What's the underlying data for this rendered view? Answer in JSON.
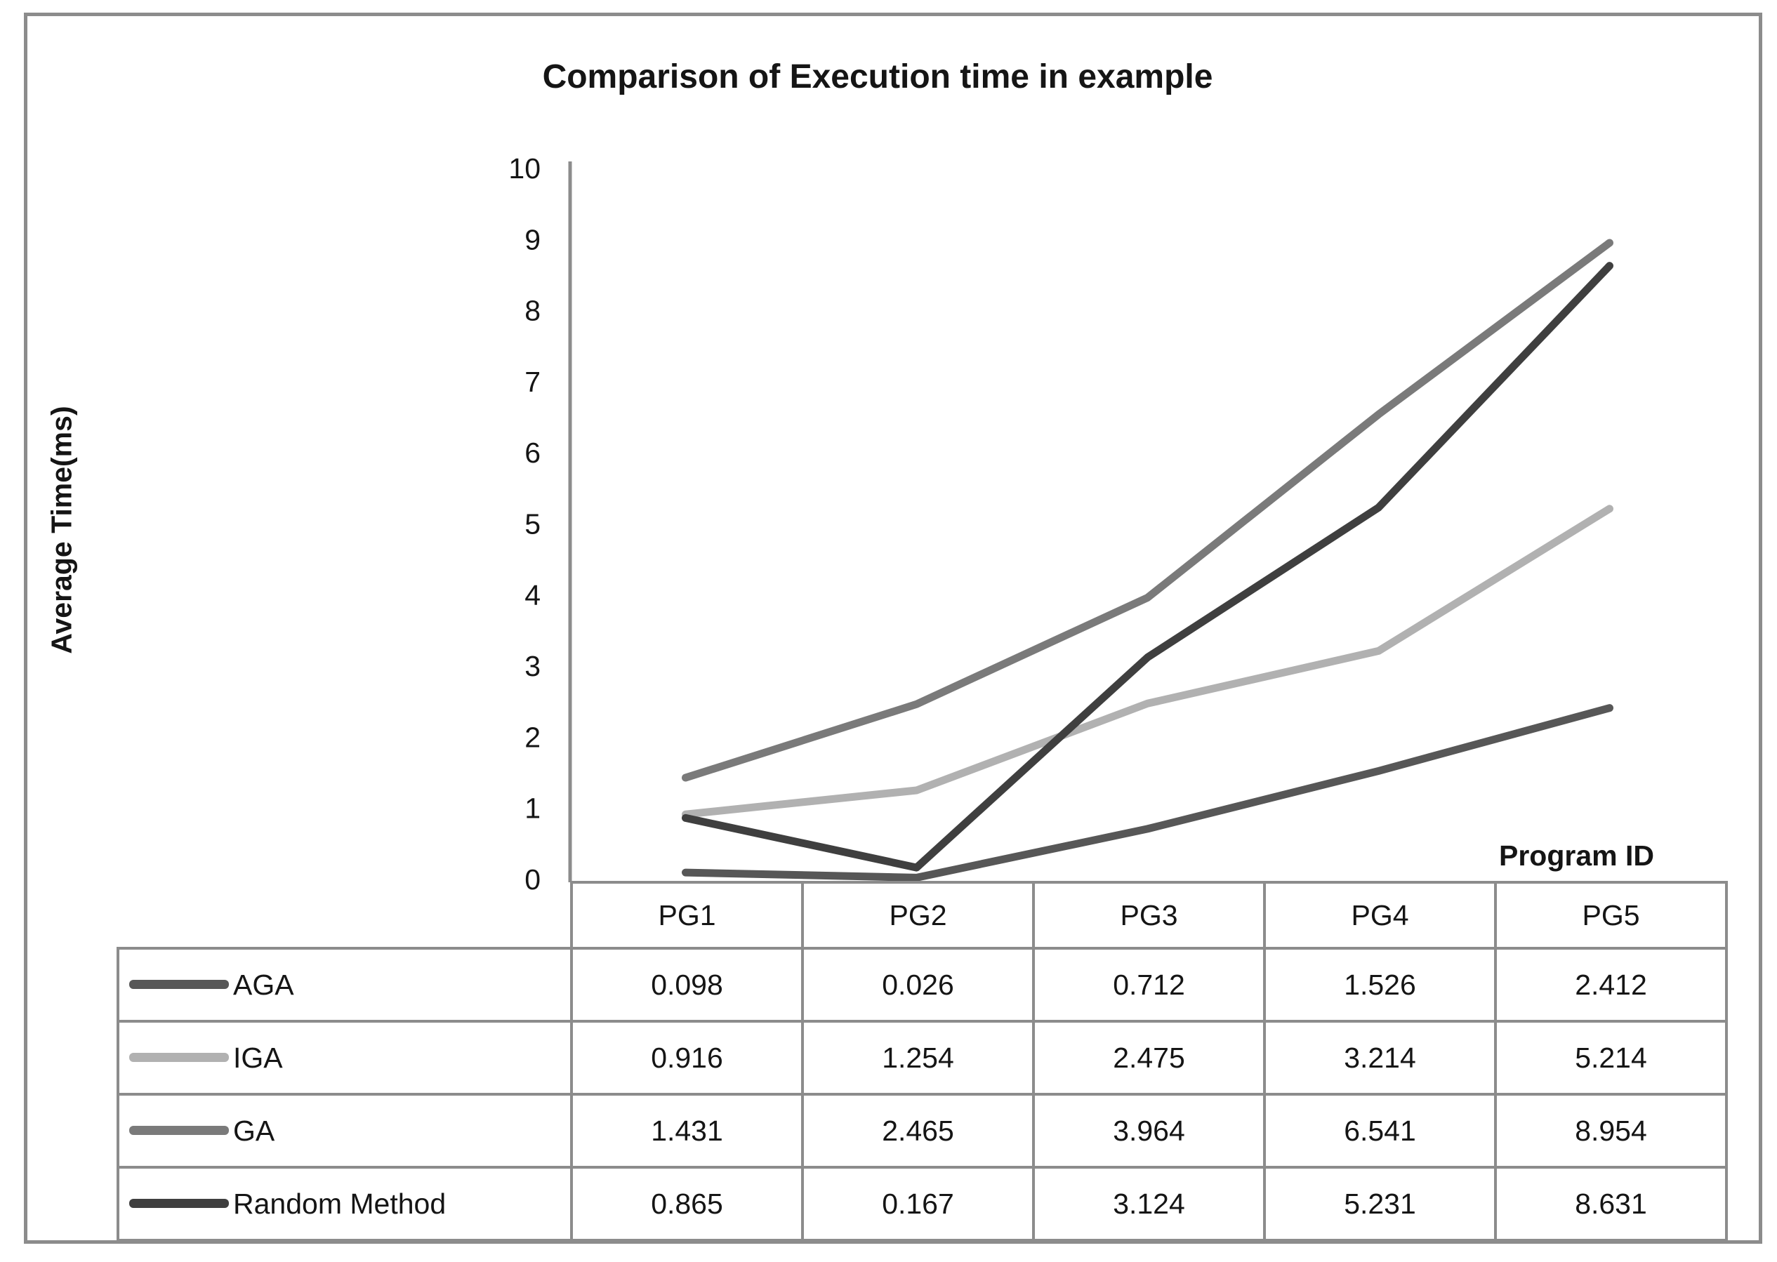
{
  "chart_data": {
    "type": "line",
    "title": "Comparison of Execution time in example",
    "xlabel": "Program ID",
    "ylabel": "Average Time(ms)",
    "categories": [
      "PG1",
      "PG2",
      "PG3",
      "PG4",
      "PG5"
    ],
    "series": [
      {
        "name": "AGA",
        "color": "#575757",
        "values": [
          0.098,
          0.026,
          0.712,
          1.526,
          2.412
        ]
      },
      {
        "name": "IGA",
        "color": "#b1b1b1",
        "values": [
          0.916,
          1.254,
          2.475,
          3.214,
          5.214
        ]
      },
      {
        "name": "GA",
        "color": "#7a7a7a",
        "values": [
          1.431,
          2.465,
          3.964,
          6.541,
          8.954
        ]
      },
      {
        "name": "Random Method",
        "color": "#3f3f3f",
        "values": [
          0.865,
          0.167,
          3.124,
          5.231,
          8.631
        ]
      }
    ],
    "ylim": [
      0,
      10
    ],
    "yticks": [
      0,
      1,
      2,
      3,
      4,
      5,
      6,
      7,
      8,
      9,
      10
    ],
    "grid": false,
    "legend_position": "table-left",
    "axis_color": "#8c8c8c",
    "text_color": "#151515",
    "value_decimals": 3
  }
}
